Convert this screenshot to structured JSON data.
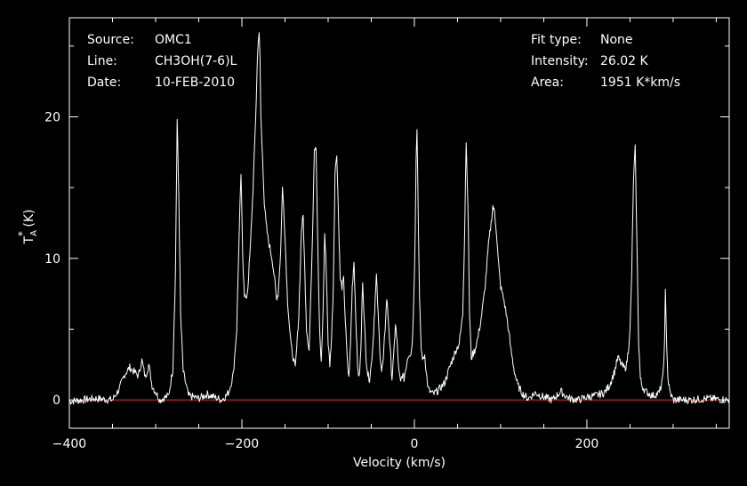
{
  "info": {
    "source_label": "Source:",
    "source_value": "OMC1",
    "line_label": "Line:",
    "line_value": "CH3OH(7-6)L",
    "date_label": "Date:",
    "date_value": "10-FEB-2010",
    "fit_label": "Fit type:",
    "fit_value": "None",
    "intensity_label": "Intensity:",
    "intensity_value": "26.02 K",
    "area_label": "Area:",
    "area_value": "1951 K*km/s"
  },
  "colors": {
    "background": "#000000",
    "spectrum": "#ffffff",
    "baseline": "#ff2020",
    "axes": "#ffffff"
  },
  "chart_data": {
    "type": "line",
    "title": "",
    "xlabel": "Velocity (km/s)",
    "ylabel": "T_A^* (K)",
    "xlim": [
      -400,
      365
    ],
    "ylim": [
      -2,
      27
    ],
    "xticks": [
      -400,
      -200,
      0,
      200
    ],
    "yticks": [
      0,
      10,
      20
    ],
    "xtick_labels": [
      "−400",
      "−200",
      "0",
      "200"
    ],
    "ytick_labels": [
      "0",
      "10",
      "20"
    ],
    "baseline": 0,
    "grid": false,
    "series": [
      {
        "x": [
          -400,
          -370,
          -350,
          -342,
          -336,
          -330,
          -325,
          -320,
          -316,
          -312,
          -308,
          -304,
          -295,
          -285,
          -280,
          -277,
          -275,
          -273,
          -271,
          -268,
          -262,
          -250,
          -240,
          -232,
          -228,
          -224,
          -218,
          -215,
          -210,
          -206,
          -203,
          -201,
          -199,
          -197,
          -195,
          -193,
          -190,
          -187,
          -184,
          -182,
          -181,
          -180,
          -179,
          -178,
          -176,
          -174,
          -172,
          -170,
          -165,
          -162,
          -160,
          -158,
          -155,
          -153,
          -151,
          -149,
          -147,
          -143,
          -138,
          -134,
          -131,
          -129,
          -127,
          -125,
          -122,
          -120,
          -118,
          -116,
          -114,
          -112,
          -110,
          -108,
          -106,
          -104,
          -102,
          -100,
          -98,
          -96,
          -94,
          -92,
          -90,
          -88,
          -86,
          -84,
          -82,
          -80,
          -78,
          -76,
          -74,
          -72,
          -70,
          -68,
          -66,
          -64,
          -62,
          -60,
          -58,
          -56,
          -54,
          -52,
          -50,
          -48,
          -46,
          -44,
          -42,
          -40,
          -38,
          -36,
          -34,
          -32,
          -30,
          -28,
          -26,
          -24,
          -22,
          -20,
          -18,
          -16,
          -14,
          -12,
          -10,
          -8,
          -6,
          -4,
          -2,
          0,
          1,
          2,
          3,
          4,
          6,
          8,
          10,
          12,
          14,
          16,
          18,
          22,
          28,
          35,
          42,
          48,
          52,
          56,
          58,
          60,
          62,
          64,
          66,
          70,
          74,
          78,
          82,
          86,
          89,
          91,
          93,
          95,
          97,
          100,
          104,
          108,
          112,
          116,
          120,
          126,
          132,
          140,
          150,
          160,
          170,
          175,
          180,
          190,
          200,
          210,
          220,
          226,
          232,
          236,
          240,
          244,
          246,
          248,
          250,
          252,
          254,
          256,
          258,
          260,
          262,
          264,
          268,
          276,
          284,
          288,
          290,
          291,
          292,
          294,
          296,
          300,
          320,
          340,
          365
        ],
        "y": [
          -0.1,
          0.1,
          0.0,
          0.8,
          1.8,
          2.3,
          2.0,
          1.7,
          2.8,
          1.6,
          2.5,
          1.0,
          0.0,
          0.3,
          2.2,
          9.0,
          19.8,
          14.0,
          6.0,
          2.0,
          0.3,
          0.1,
          0.4,
          0.2,
          0.1,
          0.0,
          0.3,
          0.6,
          1.8,
          5.0,
          12.0,
          16.0,
          10.0,
          7.5,
          7.0,
          8.0,
          11.0,
          15.0,
          20.0,
          24.0,
          25.5,
          26.0,
          24.0,
          20.0,
          17.0,
          14.0,
          12.5,
          11.5,
          10.0,
          8.5,
          7.2,
          7.5,
          10.5,
          15.0,
          13.0,
          10.0,
          7.0,
          3.8,
          2.2,
          6.0,
          12.0,
          13.0,
          9.0,
          5.0,
          3.5,
          7.5,
          12.0,
          17.8,
          18.0,
          11.0,
          5.0,
          2.6,
          6.0,
          11.8,
          9.0,
          4.0,
          2.5,
          4.5,
          8.0,
          16.0,
          17.5,
          13.0,
          8.5,
          8.0,
          8.5,
          5.5,
          3.0,
          1.5,
          4.0,
          8.0,
          9.8,
          6.0,
          2.5,
          1.5,
          3.5,
          8.5,
          5.5,
          3.0,
          1.8,
          1.5,
          2.5,
          4.0,
          6.5,
          8.8,
          6.0,
          3.5,
          2.0,
          2.8,
          5.0,
          7.2,
          5.5,
          3.5,
          1.5,
          3.0,
          5.4,
          4.0,
          2.0,
          1.2,
          1.8,
          1.5,
          2.2,
          3.0,
          3.3,
          3.2,
          4.5,
          9.0,
          12.0,
          17.0,
          19.2,
          15.0,
          7.0,
          3.5,
          2.8,
          3.2,
          1.8,
          0.8,
          0.6,
          0.4,
          0.7,
          1.2,
          2.5,
          3.5,
          4.0,
          6.0,
          11.0,
          18.3,
          14.0,
          6.0,
          3.0,
          3.5,
          4.5,
          6.0,
          8.0,
          11.0,
          12.5,
          13.7,
          13.2,
          12.0,
          10.0,
          8.0,
          7.0,
          5.5,
          3.5,
          2.0,
          1.0,
          0.4,
          0.1,
          0.5,
          0.2,
          0.0,
          0.6,
          0.3,
          0.1,
          0.0,
          0.2,
          0.3,
          0.5,
          1.0,
          2.0,
          3.0,
          2.5,
          2.2,
          2.5,
          3.5,
          5.0,
          9.0,
          15.5,
          17.8,
          11.0,
          4.0,
          1.5,
          1.0,
          0.6,
          0.3,
          0.5,
          1.5,
          4.0,
          7.6,
          5.0,
          1.5,
          0.6,
          0.0,
          0.0,
          0.1,
          0.0
        ]
      }
    ]
  }
}
